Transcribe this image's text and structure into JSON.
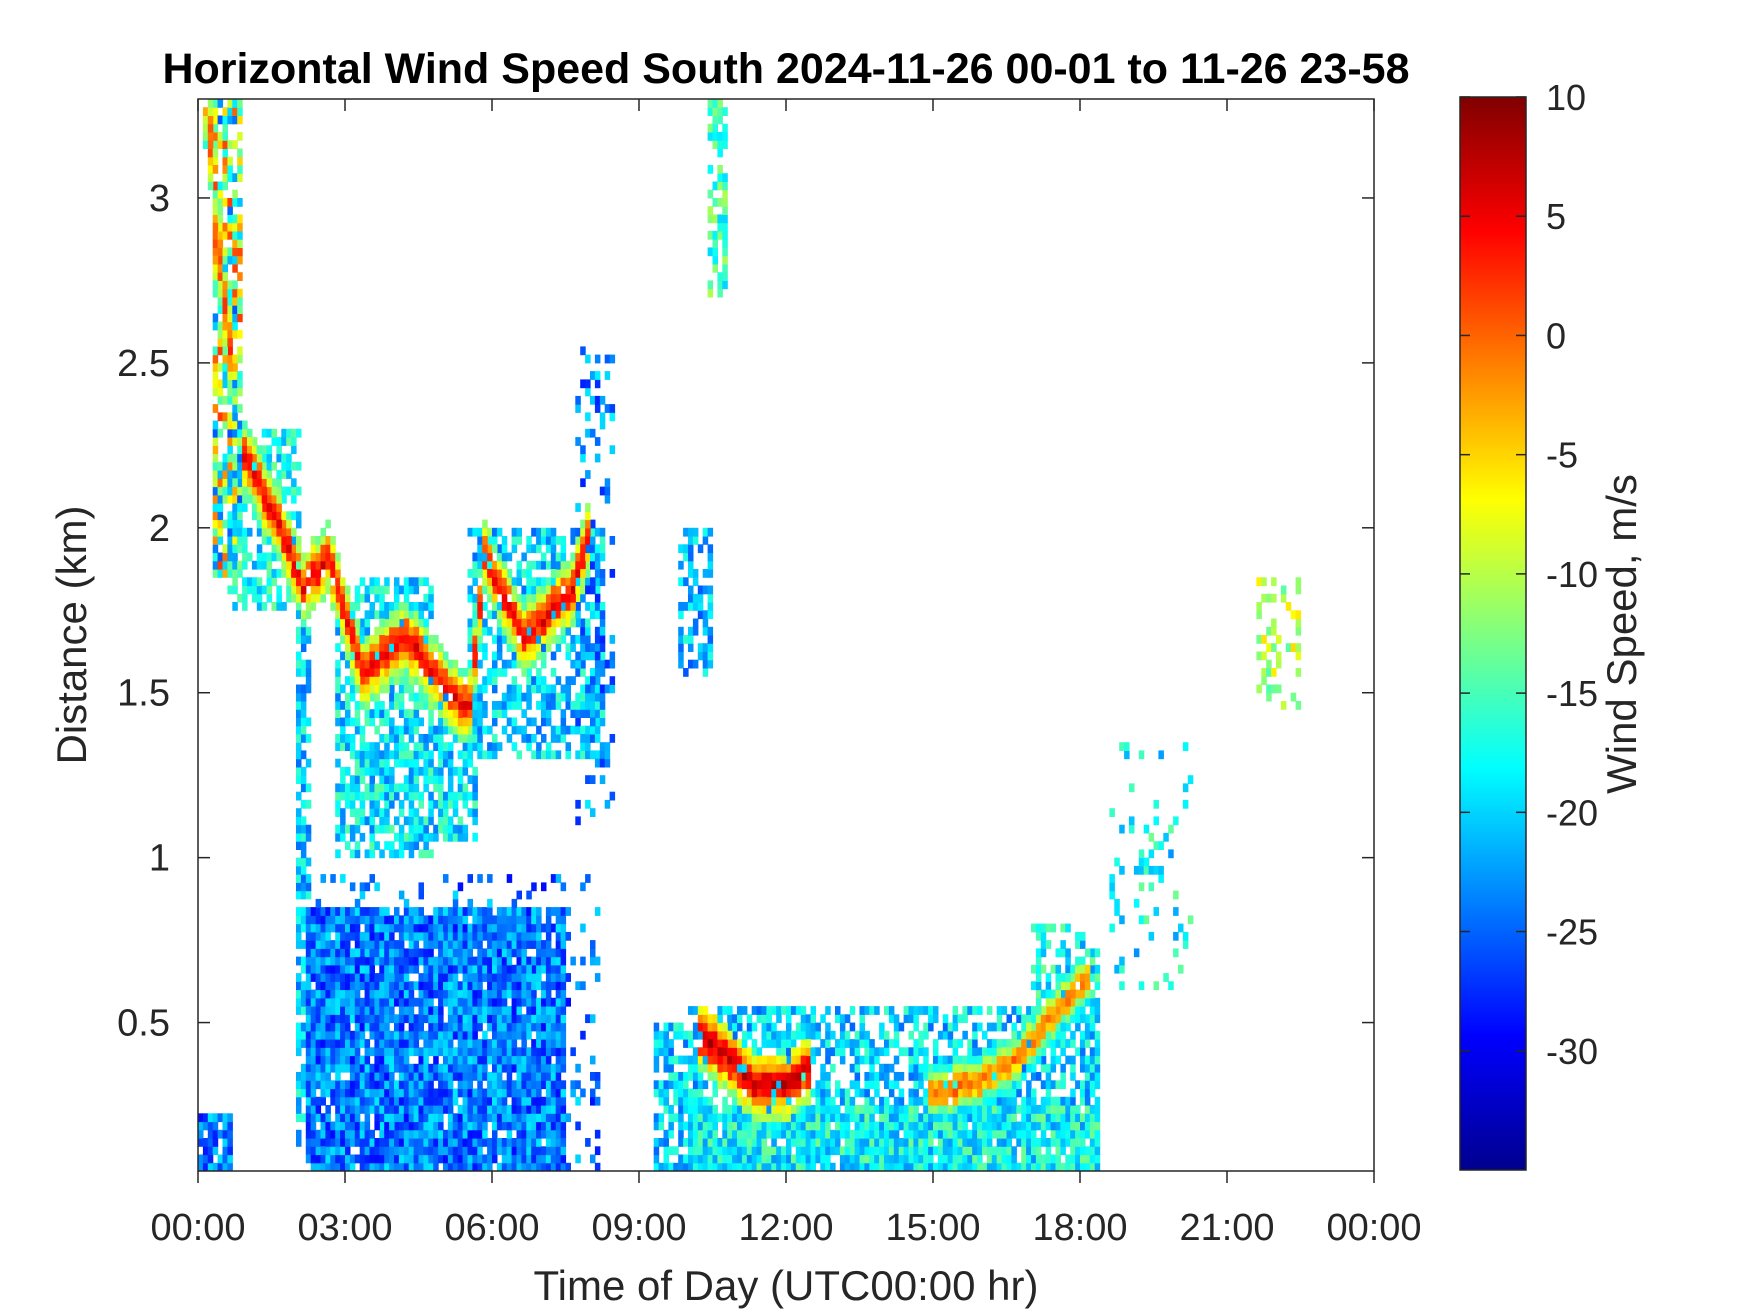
{
  "chart_data": {
    "type": "heatmap",
    "title": "Horizontal Wind Speed South 2024-11-26 00-01 to 11-26 23-58",
    "xlabel": "Time of Day (UTC00:00 hr)",
    "ylabel": "Distance (km)",
    "x_tick_labels": [
      "00:00",
      "03:00",
      "06:00",
      "09:00",
      "12:00",
      "15:00",
      "18:00",
      "21:00",
      "00:00"
    ],
    "x_tick_hours": [
      0,
      3,
      6,
      9,
      12,
      15,
      18,
      21,
      24
    ],
    "xlim_hours": [
      0,
      24
    ],
    "y_ticks": [
      0.5,
      1,
      1.5,
      2,
      2.5,
      3
    ],
    "y_tick_labels": [
      "0.5",
      "1",
      "1.5",
      "2",
      "2.5",
      "3"
    ],
    "ylim": [
      0.05,
      3.3
    ],
    "grid": false,
    "colorbar": {
      "label": "Wind Speed, m/s",
      "colormap": "jet",
      "range": [
        -35,
        10
      ],
      "ticks": [
        10,
        5,
        0,
        -5,
        -10,
        -15,
        -20,
        -25,
        -30
      ],
      "tick_labels": [
        "10",
        "5",
        "0",
        "-5",
        "-10",
        "-15",
        "-20",
        "-25",
        "-30"
      ]
    },
    "regions": [
      {
        "t0": 0.0,
        "t1": 0.7,
        "d0": 0.05,
        "d1": 0.22,
        "v": -24,
        "density": 0.8
      },
      {
        "t0": 0.3,
        "t1": 0.9,
        "d0": 1.85,
        "d1": 3.28,
        "v": -12,
        "density": 0.75,
        "spread": 14
      },
      {
        "t0": 0.6,
        "t1": 2.1,
        "d0": 1.75,
        "d1": 2.3,
        "v": -18,
        "density": 0.6
      },
      {
        "t0": 2.0,
        "t1": 2.3,
        "d0": 0.1,
        "d1": 1.75,
        "v": -20,
        "density": 0.7
      },
      {
        "t0": 2.2,
        "t1": 7.5,
        "d0": 0.05,
        "d1": 0.85,
        "v": -24,
        "density": 0.92
      },
      {
        "t0": 2.2,
        "t1": 8.2,
        "d0": 0.05,
        "d1": 0.95,
        "v": -24,
        "density": 0.15
      },
      {
        "t0": 2.8,
        "t1": 4.8,
        "d0": 1.0,
        "d1": 1.85,
        "v": -19,
        "density": 0.7
      },
      {
        "t0": 4.8,
        "t1": 5.7,
        "d0": 1.05,
        "d1": 1.5,
        "v": -19,
        "density": 0.7
      },
      {
        "t0": 5.5,
        "t1": 8.3,
        "d0": 1.3,
        "d1": 2.0,
        "v": -20,
        "density": 0.6
      },
      {
        "t0": 7.7,
        "t1": 8.5,
        "d0": 1.1,
        "d1": 2.55,
        "v": -23,
        "density": 0.25
      },
      {
        "t0": 9.3,
        "t1": 10.0,
        "d0": 0.05,
        "d1": 0.5,
        "v": -20,
        "density": 0.7
      },
      {
        "t0": 10.0,
        "t1": 18.4,
        "d0": 0.05,
        "d1": 0.25,
        "v": -18,
        "density": 0.95
      },
      {
        "t0": 10.0,
        "t1": 18.4,
        "d0": 0.25,
        "d1": 0.55,
        "v": -20,
        "density": 0.6
      },
      {
        "t0": 17.0,
        "t1": 18.4,
        "d0": 0.5,
        "d1": 0.8,
        "v": -18,
        "density": 0.5
      },
      {
        "t0": 9.8,
        "t1": 10.5,
        "d0": 1.55,
        "d1": 2.0,
        "v": -21,
        "density": 0.6
      },
      {
        "t0": 10.45,
        "t1": 10.85,
        "d0": 2.7,
        "d1": 3.3,
        "v": -15,
        "density": 0.6
      },
      {
        "t0": 18.6,
        "t1": 20.3,
        "d0": 0.6,
        "d1": 1.35,
        "v": -18,
        "density": 0.12
      },
      {
        "t0": 21.6,
        "t1": 22.5,
        "d0": 1.45,
        "d1": 1.85,
        "v": -10,
        "density": 0.35
      }
    ],
    "bands": [
      {
        "t": [
          0.9,
          1.6,
          2.1,
          2.6,
          2.9,
          3.3,
          4.2,
          5.3,
          5.5,
          5.8,
          6.6,
          7.6,
          7.9
        ],
        "d": [
          2.2,
          2.0,
          1.8,
          1.9,
          1.75,
          1.55,
          1.65,
          1.45,
          1.45,
          1.9,
          1.65,
          1.8,
          1.95
        ],
        "v": 5,
        "half_width": 0.05
      },
      {
        "t": [
          10.2,
          10.8,
          11.3,
          11.9,
          12.4
        ],
        "d": [
          0.45,
          0.38,
          0.3,
          0.29,
          0.35
        ],
        "v": 7,
        "half_width": 0.05
      },
      {
        "t": [
          14.9,
          15.7,
          16.7,
          17.6,
          18.2
        ],
        "d": [
          0.28,
          0.3,
          0.38,
          0.55,
          0.65
        ],
        "v": 0,
        "half_width": 0.04
      },
      {
        "t": [
          0.05,
          0.4,
          0.7
        ],
        "d": [
          3.3,
          2.8,
          2.4
        ],
        "v": 2,
        "half_width": 0.08
      }
    ]
  }
}
